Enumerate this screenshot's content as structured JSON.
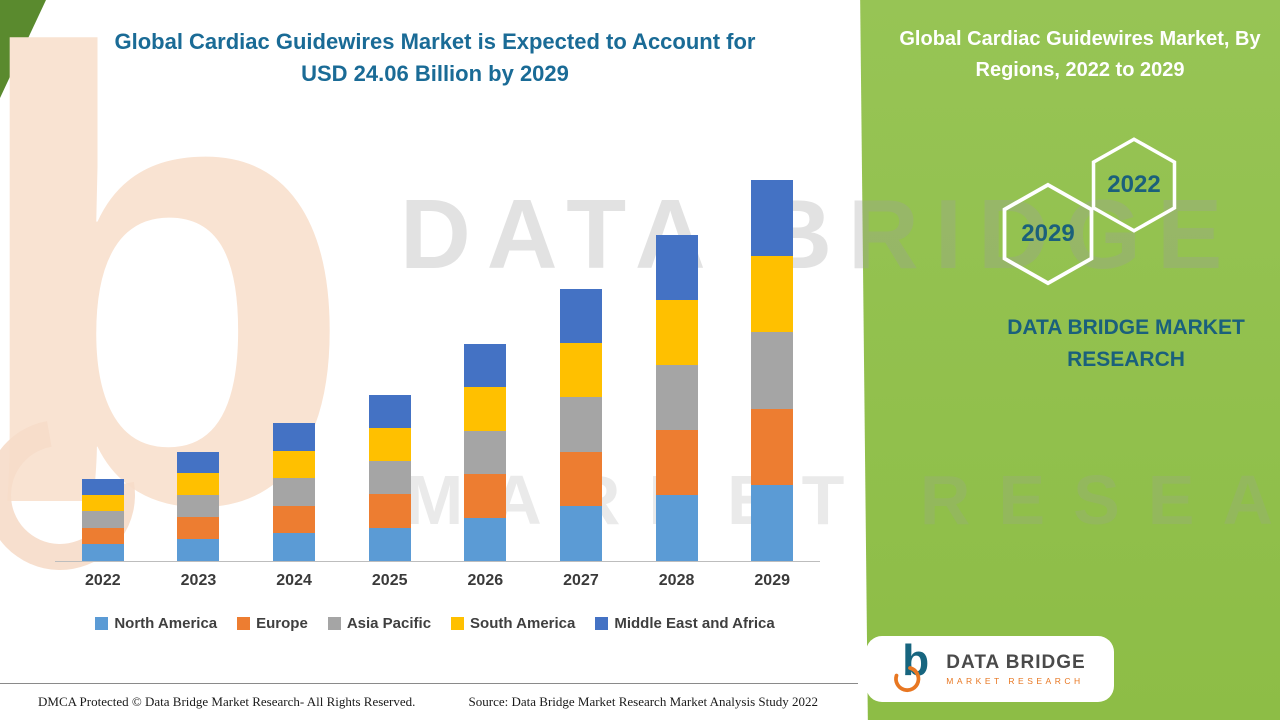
{
  "title": {
    "line1": "Global Cardiac Guidewires Market is Expected to Account for",
    "line2": "USD 24.06 Billion by 2029"
  },
  "right_panel": {
    "title": "Global Cardiac Guidewires Market, By Regions, 2022 to 2029",
    "hexagons": [
      {
        "label": "2029"
      },
      {
        "label": "2022"
      }
    ],
    "brand_text": "DATA BRIDGE MARKET RESEARCH",
    "colors": {
      "panel_green": "#8dbd46",
      "dark_green_corner": "#5a8a2e",
      "teal": "#1a607c",
      "white": "#ffffff"
    }
  },
  "watermark": {
    "line1": "DATA BRIDGE",
    "line2": "MARKET RESEARCH",
    "letter": "b"
  },
  "chart_data": {
    "type": "bar",
    "stacked": true,
    "title": "Global Cardiac Guidewires Market is Expected to Account for USD 24.06 Billion by 2029",
    "units": "USD Billion",
    "categories": [
      "2022",
      "2023",
      "2024",
      "2025",
      "2026",
      "2027",
      "2028",
      "2029"
    ],
    "series": [
      {
        "name": "North America",
        "color": "#5b9bd5",
        "values": [
          1.05,
          1.4,
          1.75,
          2.1,
          2.75,
          3.45,
          4.15,
          4.82
        ]
      },
      {
        "name": "Europe",
        "color": "#ed7d31",
        "values": [
          1.04,
          1.38,
          1.74,
          2.1,
          2.74,
          3.44,
          4.12,
          4.81
        ]
      },
      {
        "name": "Asia Pacific",
        "color": "#a5a5a5",
        "values": [
          1.04,
          1.38,
          1.74,
          2.1,
          2.74,
          3.44,
          4.12,
          4.81
        ]
      },
      {
        "name": "South America",
        "color": "#ffc000",
        "values": [
          1.04,
          1.38,
          1.74,
          2.1,
          2.74,
          3.44,
          4.12,
          4.81
        ]
      },
      {
        "name": "Middle East and Africa",
        "color": "#4472c4",
        "values": [
          1.03,
          1.36,
          1.73,
          2.1,
          2.73,
          3.43,
          4.09,
          4.81
        ]
      }
    ],
    "totals": [
      5.2,
      6.9,
      8.7,
      10.5,
      13.7,
      17.2,
      20.6,
      24.06
    ],
    "ylim": [
      0,
      24.5
    ],
    "grid": false,
    "legend_position": "bottom"
  },
  "footer": {
    "left": "DMCA Protected © Data Bridge Market Research- All Rights Reserved.",
    "source": "Source: Data Bridge Market Research Market Analysis Study 2022"
  },
  "logo": {
    "letter": "b",
    "name": "DATA BRIDGE",
    "subtitle": "MARKET RESEARCH"
  }
}
